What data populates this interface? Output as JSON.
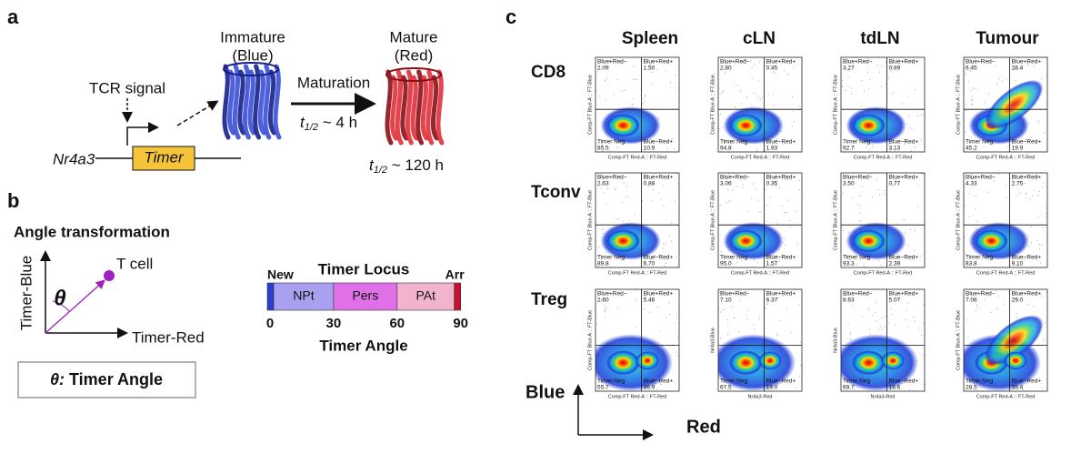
{
  "panel_a": {
    "label": "a",
    "immature": "Immature",
    "immature_color": "(Blue)",
    "mature": "Mature",
    "mature_color": "(Red)",
    "signal": "TCR signal",
    "maturation": "Maturation",
    "half_life_symbol": "t",
    "half_life_sub": "1/2",
    "maturation_time": " ~ 4 h",
    "mature_time": " ~ 120 h",
    "gene": "Nr4a3",
    "reporter": "Timer"
  },
  "panel_b": {
    "label": "b",
    "title": "Angle transformation",
    "y_axis": "Timer-Blue",
    "x_axis": "Timer-Red",
    "angle_symbol": "θ",
    "point": "T cell",
    "definition_symbol": "θ:",
    "definition": " Timer Angle",
    "locus_title": "Timer Locus",
    "segments": [
      "New",
      "NPt",
      "Pers",
      "PAt",
      "Arr"
    ],
    "ticks": [
      "0",
      "30",
      "60",
      "90"
    ],
    "axis_label": "Timer Angle"
  },
  "panel_c": {
    "label": "c",
    "columns": [
      "Spleen",
      "cLN",
      "tdLN",
      "Tumour"
    ],
    "rows": [
      "CD8",
      "Tconv",
      "Treg"
    ],
    "quadrants": {
      "ul": "Blue+Red−",
      "ur": "Blue+Red+",
      "ll": "Timer Neg",
      "lr": "Blue−Red+"
    },
    "plots": [
      [
        {
          "ul": "2.09",
          "ur": "1.50",
          "ll": "85.5",
          "lr": "10.9",
          "x_label": "Comp-FT Red-A :: FT-Red",
          "y_label": "Comp-FT Blue-A :: FT-Blue"
        },
        {
          "ul": "2.80",
          "ur": "0.45",
          "ll": "94.8",
          "lr": "1.93",
          "x_label": "Comp-FT Red-A :: FT-Red",
          "y_label": "Comp-FT Blue-A :: FT-Blue"
        },
        {
          "ul": "3.27",
          "ur": "0.89",
          "ll": "92.7",
          "lr": "3.13",
          "x_label": "Comp-FT Red-A :: FT-Red",
          "y_label": "Comp-FT Blue-A :: FT-Blue"
        },
        {
          "ul": "6.45",
          "ur": "28.4",
          "ll": "45.2",
          "lr": "19.9",
          "x_label": "Comp-FT Red-A :: FT-Red",
          "y_label": "Comp-FT Blue-A :: FT-Blue"
        }
      ],
      [
        {
          "ul": "2.63",
          "ur": "0.88",
          "ll": "89.8",
          "lr": "6.70",
          "x_label": "Comp-FT Red-A :: FT-Red",
          "y_label": "Comp-FT Blue-A :: FT-Blue"
        },
        {
          "ul": "3.06",
          "ur": "0.35",
          "ll": "95.0",
          "lr": "1.57",
          "x_label": "Comp-FT Red-A :: FT-Red",
          "y_label": "Comp-FT Blue-A :: FT-Blue"
        },
        {
          "ul": "3.50",
          "ur": "0.77",
          "ll": "93.3",
          "lr": "2.39",
          "x_label": "Comp-FT Red-A :: FT-Red",
          "y_label": "Comp-FT Blue-A :: FT-Blue"
        },
        {
          "ul": "4.33",
          "ur": "2.75",
          "ll": "83.8",
          "lr": "9.10",
          "x_label": "Comp-FT Red-A :: FT-Red",
          "y_label": "Comp-FT Blue-A :: FT-Blue"
        }
      ],
      [
        {
          "ul": "2.60",
          "ur": "5.46",
          "ll": "55.7",
          "lr": "36.9",
          "x_label": "Comp-FT Red-A :: FT-Red",
          "y_label": "Comp-FT Blue-A :: FT-Blue"
        },
        {
          "ul": "7.10",
          "ur": "6.37",
          "ll": "67.5",
          "lr": "19.0",
          "x_label": "Nr4a3-Red",
          "y_label": "Nr4a3-Blue"
        },
        {
          "ul": "8.63",
          "ur": "5.07",
          "ll": "69.7",
          "lr": "16.6",
          "x_label": "Nr4a3-Red",
          "y_label": "Nr4a3-Blue"
        },
        {
          "ul": "7.08",
          "ur": "29.0",
          "ll": "28.5",
          "lr": "35.4",
          "x_label": "Comp-FT Red-A :: FT-Red",
          "y_label": "Comp-FT Blue-A :: FT-Blue"
        }
      ]
    ],
    "y_axis": "Blue",
    "x_axis": "Red"
  }
}
